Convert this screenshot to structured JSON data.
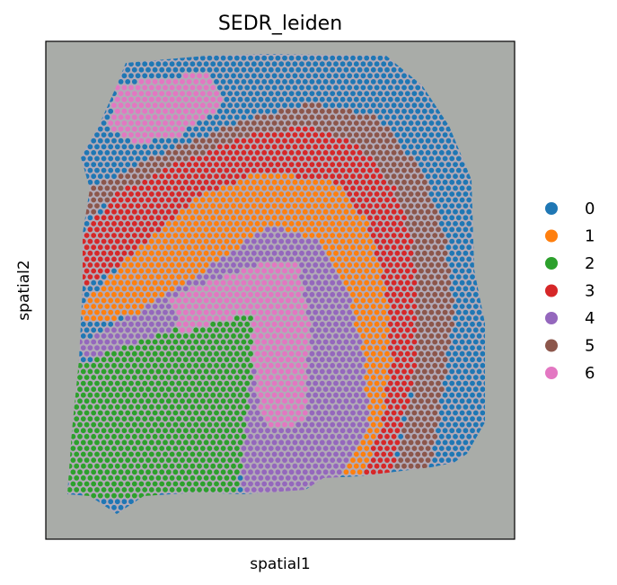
{
  "chart_data": {
    "type": "scatter",
    "title": "SEDR_leiden",
    "xlabel": "spatial1",
    "ylabel": "spatial2",
    "xticks": [],
    "yticks": [],
    "background": "tissue-image",
    "legend": {
      "placement": "right-outside",
      "entries": [
        {
          "name": "0",
          "color": "#1f77b4"
        },
        {
          "name": "1",
          "color": "#ff7f0e"
        },
        {
          "name": "2",
          "color": "#2ca02c"
        },
        {
          "name": "3",
          "color": "#d62728"
        },
        {
          "name": "4",
          "color": "#9467bd"
        },
        {
          "name": "5",
          "color": "#8c564b"
        },
        {
          "name": "6",
          "color": "#e377c2"
        }
      ]
    }
  }
}
